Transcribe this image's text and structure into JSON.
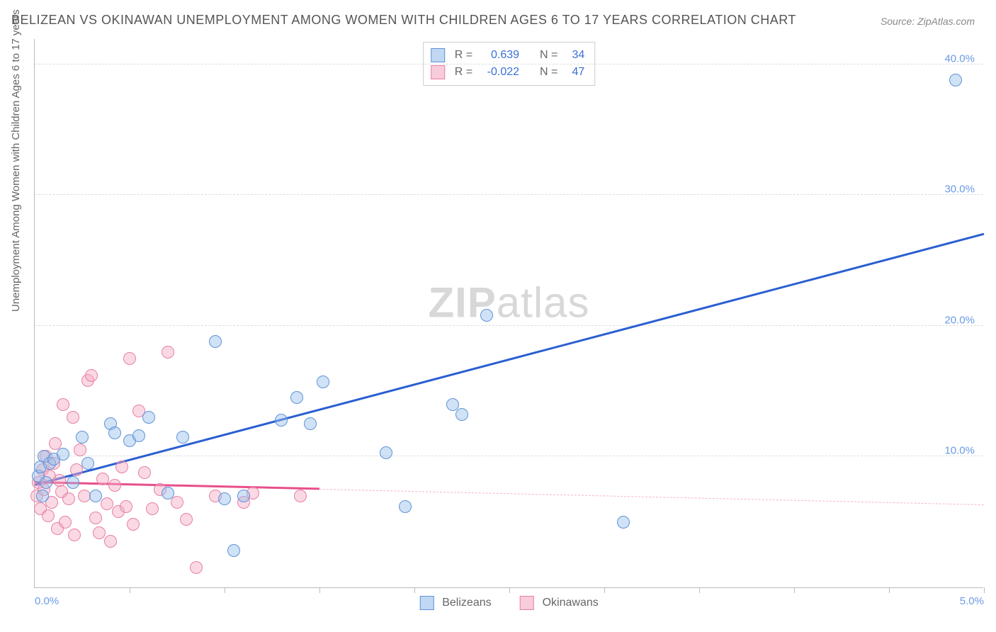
{
  "title": "BELIZEAN VS OKINAWAN UNEMPLOYMENT AMONG WOMEN WITH CHILDREN AGES 6 TO 17 YEARS CORRELATION CHART",
  "source": "Source: ZipAtlas.com",
  "ylabel": "Unemployment Among Women with Children Ages 6 to 17 years",
  "watermark_bold": "ZIP",
  "watermark_light": "atlas",
  "chart": {
    "type": "scatter",
    "xlim": [
      0,
      5.0
    ],
    "ylim": [
      0,
      42
    ],
    "y_ticks": [
      10.0,
      20.0,
      30.0,
      40.0
    ],
    "y_tick_labels": [
      "10.0%",
      "20.0%",
      "30.0%",
      "40.0%"
    ],
    "x_minor_ticks": [
      0.5,
      1.0,
      1.5,
      2.0,
      2.5,
      3.0,
      3.5,
      4.0,
      4.5,
      5.0
    ],
    "x_tick_labels": {
      "0": "0.0%",
      "5.0": "5.0%"
    },
    "marker_radius": 9,
    "background_color": "#ffffff",
    "grid_color": "#dddddd",
    "axis_color": "#bbbbbb",
    "series": [
      {
        "name": "Belizeans",
        "color_fill": "#96bee8",
        "color_stroke": "#5f93d6",
        "trend_color": "#2a5fd1",
        "trend": {
          "x1": 0.0,
          "y1": 7.8,
          "x2": 5.0,
          "y2": 27.0,
          "dash_after_x": null
        },
        "stats": {
          "R": "0.639",
          "N": "34"
        },
        "points": [
          [
            0.02,
            8.5
          ],
          [
            0.03,
            9.2
          ],
          [
            0.04,
            7.0
          ],
          [
            0.05,
            10.0
          ],
          [
            0.06,
            8.0
          ],
          [
            0.08,
            9.5
          ],
          [
            0.1,
            9.8
          ],
          [
            0.15,
            10.2
          ],
          [
            0.2,
            8.0
          ],
          [
            0.25,
            11.5
          ],
          [
            0.28,
            9.5
          ],
          [
            0.32,
            7.0
          ],
          [
            0.4,
            12.5
          ],
          [
            0.42,
            11.8
          ],
          [
            0.5,
            11.2
          ],
          [
            0.55,
            11.6
          ],
          [
            0.6,
            13.0
          ],
          [
            0.7,
            7.2
          ],
          [
            0.78,
            11.5
          ],
          [
            0.95,
            18.8
          ],
          [
            1.0,
            6.8
          ],
          [
            1.05,
            2.8
          ],
          [
            1.1,
            7.0
          ],
          [
            1.3,
            12.8
          ],
          [
            1.38,
            14.5
          ],
          [
            1.45,
            12.5
          ],
          [
            1.52,
            15.7
          ],
          [
            1.85,
            10.3
          ],
          [
            1.95,
            6.2
          ],
          [
            2.2,
            14.0
          ],
          [
            2.25,
            13.2
          ],
          [
            2.38,
            20.8
          ],
          [
            3.1,
            5.0
          ],
          [
            4.85,
            38.8
          ]
        ]
      },
      {
        "name": "Okinawans",
        "color_fill": "#f4aac3",
        "color_stroke": "#e77fa5",
        "trend_color": "#e84f8a",
        "trend": {
          "x1": 0.0,
          "y1": 8.0,
          "x2": 5.0,
          "y2": 6.3,
          "dash_after_x": 1.5
        },
        "stats": {
          "R": "-0.022",
          "N": "47"
        },
        "points": [
          [
            0.01,
            7.0
          ],
          [
            0.02,
            8.0
          ],
          [
            0.03,
            6.0
          ],
          [
            0.04,
            9.0
          ],
          [
            0.05,
            7.5
          ],
          [
            0.06,
            10.0
          ],
          [
            0.07,
            5.5
          ],
          [
            0.08,
            8.5
          ],
          [
            0.09,
            6.5
          ],
          [
            0.1,
            9.5
          ],
          [
            0.11,
            11.0
          ],
          [
            0.12,
            4.5
          ],
          [
            0.13,
            8.2
          ],
          [
            0.14,
            7.3
          ],
          [
            0.15,
            14.0
          ],
          [
            0.16,
            5.0
          ],
          [
            0.18,
            6.8
          ],
          [
            0.2,
            13.0
          ],
          [
            0.21,
            4.0
          ],
          [
            0.22,
            9.0
          ],
          [
            0.24,
            10.5
          ],
          [
            0.26,
            7.0
          ],
          [
            0.28,
            15.8
          ],
          [
            0.3,
            16.2
          ],
          [
            0.32,
            5.3
          ],
          [
            0.34,
            4.2
          ],
          [
            0.36,
            8.3
          ],
          [
            0.38,
            6.4
          ],
          [
            0.4,
            3.5
          ],
          [
            0.42,
            7.8
          ],
          [
            0.44,
            5.8
          ],
          [
            0.46,
            9.2
          ],
          [
            0.48,
            6.2
          ],
          [
            0.5,
            17.5
          ],
          [
            0.52,
            4.8
          ],
          [
            0.55,
            13.5
          ],
          [
            0.58,
            8.8
          ],
          [
            0.62,
            6.0
          ],
          [
            0.66,
            7.5
          ],
          [
            0.7,
            18.0
          ],
          [
            0.75,
            6.5
          ],
          [
            0.8,
            5.2
          ],
          [
            0.85,
            1.5
          ],
          [
            0.95,
            7.0
          ],
          [
            1.1,
            6.5
          ],
          [
            1.15,
            7.2
          ],
          [
            1.4,
            7.0
          ]
        ]
      }
    ]
  },
  "stats_labels": {
    "R": "R =",
    "N": "N ="
  }
}
